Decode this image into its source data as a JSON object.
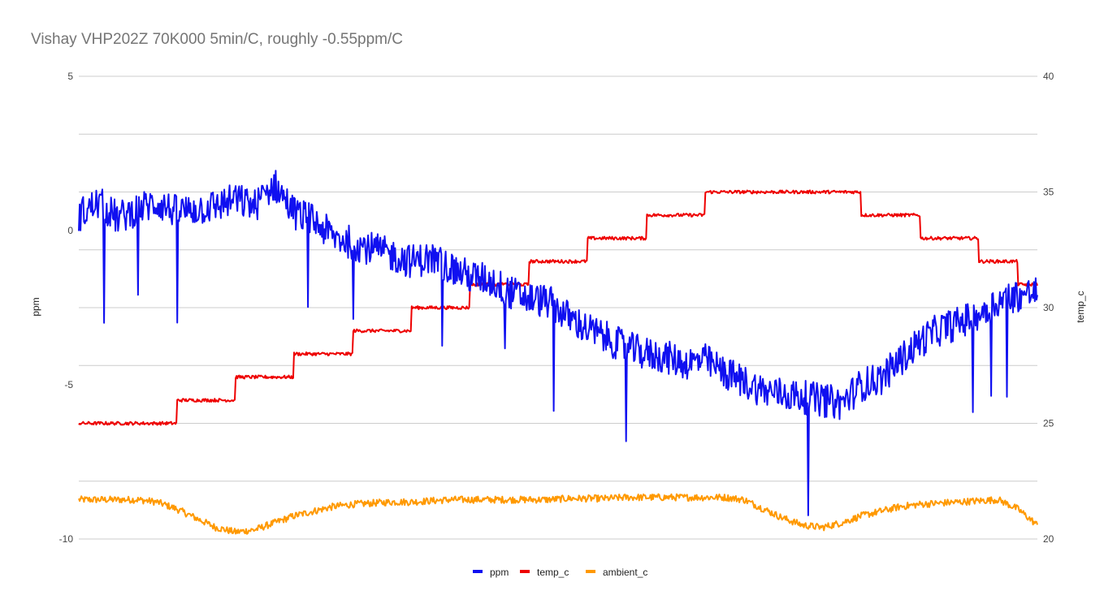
{
  "chart_data": {
    "type": "line",
    "title": "Vishay VHP202Z 70K000 5min/C, roughly -0.55ppm/C",
    "ylabel": "ppm",
    "y2label": "temp_c",
    "ylim": [
      -10,
      5
    ],
    "y2lim": [
      20,
      40
    ],
    "yticks": [
      "5",
      "0",
      "-5",
      "-10"
    ],
    "y2ticks": [
      "40",
      "35",
      "30",
      "25",
      "20"
    ],
    "grid": true,
    "legend_position": "bottom",
    "x_samples": 50,
    "series": [
      {
        "name": "ppm",
        "axis": "left",
        "color": "#1010f0",
        "values": [
          0.5,
          0.9,
          0.4,
          0.7,
          0.9,
          0.6,
          0.7,
          0.8,
          1.0,
          0.8,
          1.5,
          0.6,
          0.3,
          -0.2,
          -0.4,
          -0.6,
          -0.8,
          -1.0,
          -0.9,
          -1.2,
          -1.5,
          -1.6,
          -2.0,
          -2.2,
          -2.3,
          -2.8,
          -3.2,
          -3.5,
          -3.8,
          -4.0,
          -4.1,
          -4.3,
          -4.2,
          -4.6,
          -4.9,
          -5.2,
          -5.3,
          -5.4,
          -5.5,
          -5.6,
          -5.0,
          -4.8,
          -4.2,
          -3.6,
          -3.2,
          -3.0,
          -2.7,
          -2.3,
          -2.1,
          -2.0
        ],
        "amplitude": 0.55
      },
      {
        "name": "temp_c",
        "axis": "right",
        "color": "#ee0000",
        "values": [
          25.0,
          25.0,
          25.0,
          25.0,
          25.0,
          26.0,
          26.0,
          26.0,
          27.0,
          27.0,
          27.0,
          28.0,
          28.0,
          28.0,
          29.0,
          29.0,
          29.0,
          30.0,
          30.0,
          30.0,
          31.0,
          31.0,
          31.0,
          32.0,
          32.0,
          32.0,
          33.0,
          33.0,
          33.0,
          34.0,
          34.0,
          34.0,
          35.0,
          35.0,
          35.0,
          35.0,
          35.0,
          35.0,
          35.0,
          35.0,
          34.0,
          34.0,
          34.0,
          33.0,
          33.0,
          33.0,
          32.0,
          32.0,
          31.0,
          31.0
        ],
        "amplitude": 0.07
      },
      {
        "name": "ambient_c",
        "axis": "right",
        "color": "#ff9900",
        "values": [
          21.7,
          21.7,
          21.7,
          21.7,
          21.6,
          21.3,
          20.9,
          20.5,
          20.3,
          20.4,
          20.7,
          21.0,
          21.2,
          21.4,
          21.5,
          21.55,
          21.6,
          21.6,
          21.65,
          21.7,
          21.7,
          21.7,
          21.7,
          21.7,
          21.7,
          21.75,
          21.75,
          21.75,
          21.8,
          21.8,
          21.8,
          21.8,
          21.8,
          21.8,
          21.7,
          21.3,
          20.9,
          20.6,
          20.5,
          20.7,
          21.0,
          21.2,
          21.4,
          21.5,
          21.55,
          21.6,
          21.65,
          21.7,
          21.3,
          20.6
        ],
        "amplitude": 0.15
      }
    ]
  }
}
